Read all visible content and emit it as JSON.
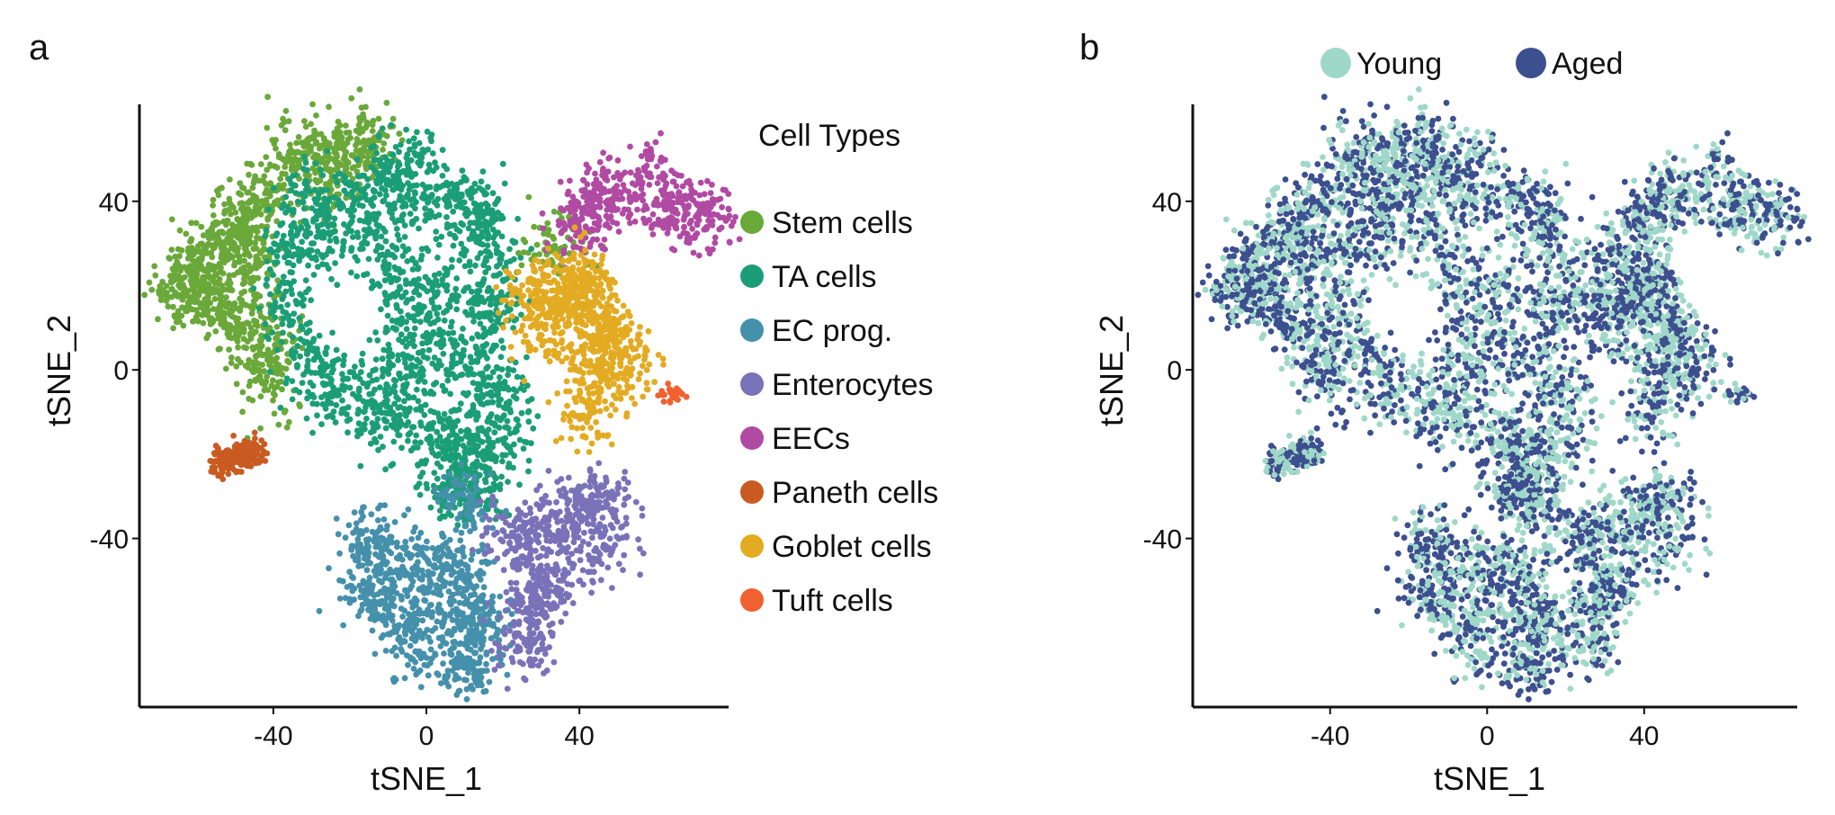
{
  "chart_data": [
    {
      "type": "scatter",
      "panel_label": "a",
      "xlabel": "tSNE_1",
      "ylabel": "tSNE_2",
      "xlim": [
        -75,
        79
      ],
      "ylim": [
        -80,
        63
      ],
      "xticks": [
        -40,
        0,
        40
      ],
      "yticks": [
        -40,
        0,
        40
      ],
      "grid": false,
      "legend": {
        "title": "Cell Types",
        "placement": "right"
      },
      "series": [
        {
          "name": "Stem cells",
          "color": "#6aa83a",
          "anchors": [
            [
              -65,
              20
            ],
            [
              -60,
              25
            ],
            [
              -55,
              15
            ],
            [
              -50,
              30
            ],
            [
              -45,
              40
            ],
            [
              -45,
              20
            ],
            [
              -50,
              10
            ],
            [
              -40,
              5
            ],
            [
              -42,
              -2
            ],
            [
              -55,
              28
            ],
            [
              -35,
              50
            ],
            [
              -30,
              52
            ],
            [
              -20,
              50
            ],
            [
              -15,
              55
            ],
            [
              -25,
              45
            ],
            [
              -60,
              18
            ],
            [
              -48,
              35
            ],
            [
              33,
              29
            ]
          ]
        },
        {
          "name": "TA cells",
          "color": "#1b9e77",
          "anchors": [
            [
              -35,
              30
            ],
            [
              -30,
              40
            ],
            [
              -20,
              40
            ],
            [
              -10,
              45
            ],
            [
              -5,
              50
            ],
            [
              0,
              40
            ],
            [
              10,
              40
            ],
            [
              15,
              35
            ],
            [
              17,
              25
            ],
            [
              17,
              15
            ],
            [
              -35,
              15
            ],
            [
              -30,
              3
            ],
            [
              -25,
              -5
            ],
            [
              -15,
              -5
            ],
            [
              -5,
              0
            ],
            [
              5,
              5
            ],
            [
              15,
              5
            ],
            [
              18,
              -5
            ],
            [
              10,
              -15
            ],
            [
              0,
              -15
            ],
            [
              -10,
              -12
            ],
            [
              15,
              -25
            ],
            [
              5,
              -25
            ],
            [
              -5,
              20
            ],
            [
              -5,
              10
            ],
            [
              5,
              20
            ],
            [
              10,
              -30
            ],
            [
              20,
              -15
            ],
            [
              -25,
              30
            ],
            [
              -12,
              30
            ]
          ]
        },
        {
          "name": "EC prog.",
          "color": "#4590ab",
          "anchors": [
            [
              -15,
              -40
            ],
            [
              -10,
              -45
            ],
            [
              0,
              -45
            ],
            [
              10,
              -48
            ],
            [
              -10,
              -55
            ],
            [
              0,
              -55
            ],
            [
              10,
              -58
            ],
            [
              -5,
              -65
            ],
            [
              5,
              -68
            ],
            [
              12,
              -70
            ],
            [
              -15,
              -50
            ],
            [
              15,
              -60
            ],
            [
              10,
              -31
            ]
          ]
        },
        {
          "name": "Enterocytes",
          "color": "#7a72b8",
          "anchors": [
            [
              22,
              -40
            ],
            [
              28,
              -38
            ],
            [
              35,
              -36
            ],
            [
              42,
              -33
            ],
            [
              47,
              -32
            ],
            [
              45,
              -42
            ],
            [
              30,
              -52
            ],
            [
              27,
              -58
            ],
            [
              25,
              -65
            ],
            [
              33,
              -50
            ]
          ]
        },
        {
          "name": "EECs",
          "color": "#b04aa2",
          "anchors": [
            [
              40,
              35
            ],
            [
              44,
              38
            ],
            [
              48,
              42
            ],
            [
              58,
              46
            ],
            [
              62,
              40
            ],
            [
              68,
              37
            ],
            [
              73,
              36
            ]
          ]
        },
        {
          "name": "Paneth cells",
          "color": "#c95b22",
          "anchors": [
            [
              -53,
              -22
            ],
            [
              -49,
              -20
            ],
            [
              -45,
              -19
            ]
          ]
        },
        {
          "name": "Goblet cells",
          "color": "#e3ab22",
          "anchors": [
            [
              28,
              18
            ],
            [
              30,
              10
            ],
            [
              35,
              15
            ],
            [
              40,
              22
            ],
            [
              45,
              15
            ],
            [
              48,
              5
            ],
            [
              52,
              3
            ],
            [
              45,
              -3
            ],
            [
              42,
              -10
            ],
            [
              38,
              20
            ],
            [
              44,
              10
            ]
          ]
        },
        {
          "name": "Tuft cells",
          "color": "#ef6230",
          "anchors": [
            [
              64,
              -6
            ]
          ]
        }
      ]
    },
    {
      "type": "scatter",
      "panel_label": "b",
      "xlabel": "tSNE_1",
      "ylabel": "tSNE_2",
      "xlim": [
        -75,
        79
      ],
      "ylim": [
        -80,
        63
      ],
      "xticks": [
        -40,
        0,
        40
      ],
      "yticks": [
        -40,
        0,
        40
      ],
      "grid": false,
      "legend": {
        "placement": "top"
      },
      "series": [
        {
          "name": "Young",
          "color": "#9fd8c8"
        },
        {
          "name": "Aged",
          "color": "#3c4f8e"
        }
      ]
    }
  ]
}
